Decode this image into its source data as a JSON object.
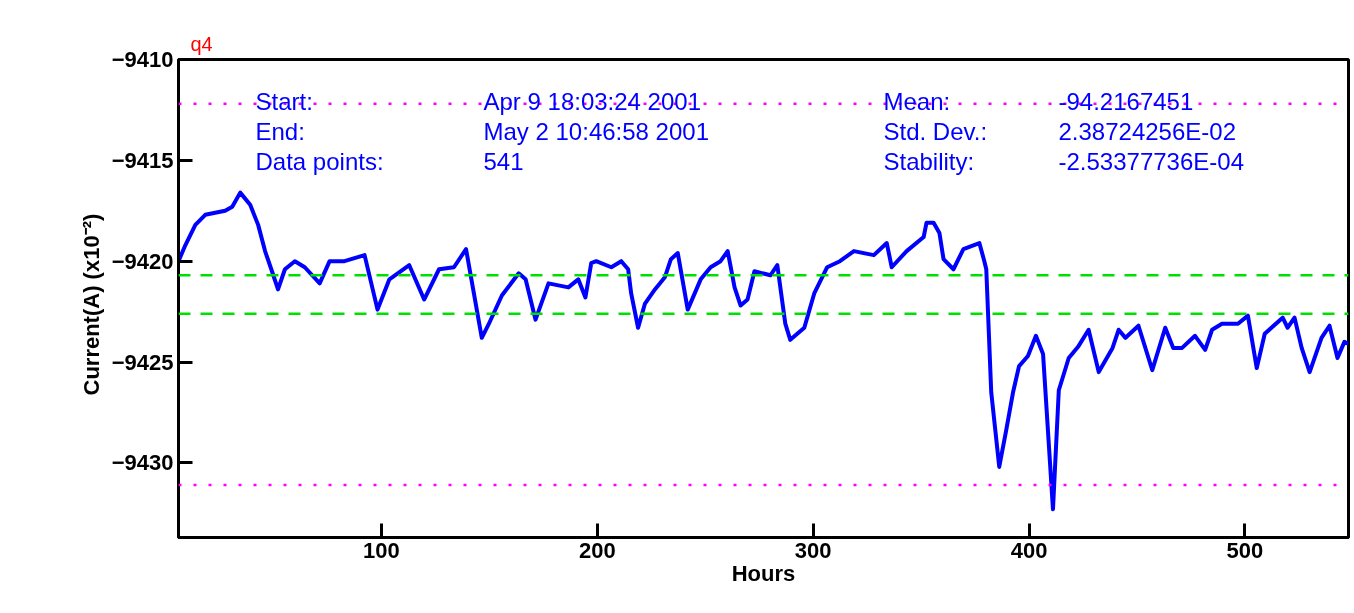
{
  "chart_data": {
    "type": "line",
    "title": "q4",
    "xlabel": "Hours",
    "ylabel": "Current(A)   (x10⁻²)",
    "x": [
      6.0,
      9.2,
      13.8,
      18.4,
      23.0,
      27.6,
      30.9,
      34.6,
      39.2,
      42.9,
      46.1,
      49.3,
      52.1,
      55.3,
      59.9,
      64.5,
      71.4,
      76.0,
      82.9,
      92.2,
      98.2,
      103.7,
      112.9,
      119.8,
      126.7,
      133.6,
      139.2,
      146.5,
      149.8,
      155.8,
      163.6,
      166.8,
      171.4,
      177.4,
      186.6,
      191.2,
      194.5,
      197.2,
      199.5,
      206.5,
      211.1,
      214.3,
      215.7,
      218.9,
      222.1,
      226.7,
      231.3,
      234.1,
      237.3,
      241.9,
      247.9,
      252.5,
      257.1,
      260.4,
      263.6,
      266.4,
      269.6,
      272.8,
      280.2,
      283.4,
      287.1,
      289.4,
      295.9,
      300.5,
      306.5,
      312.4,
      318.9,
      328.1,
      334.1,
      336.4,
      343.3,
      351.2,
      352.5,
      355.8,
      358.5,
      360.4,
      365.0,
      369.6,
      377.0,
      379.3,
      380.2,
      382.5,
      386.2,
      389.4,
      392.6,
      395.4,
      399.5,
      403.2,
      406.5,
      411.1,
      413.8,
      418.4,
      423.0,
      427.6,
      432.3,
      438.7,
      441.5,
      444.7,
      450.7,
      457.1,
      463.1,
      466.8,
      470.9,
      476.9,
      481.6,
      484.8,
      489.4,
      496.8,
      501.4,
      505.5,
      509.2,
      517.5,
      519.8,
      523.0,
      526.3,
      530.0,
      535.5,
      539.2,
      542.9,
      546.1,
      548.0
    ],
    "series": [
      {
        "color": "#0000ff",
        "values": [
          -9420.0,
          -9419.2,
          -9418.2,
          -9417.7,
          -9417.6,
          -9417.5,
          -9417.3,
          -9416.6,
          -9417.2,
          -9418.2,
          -9419.5,
          -9420.5,
          -9421.4,
          -9420.4,
          -9420.0,
          -9420.3,
          -9421.1,
          -9420.0,
          -9420.0,
          -9419.7,
          -9422.4,
          -9420.9,
          -9420.2,
          -9421.9,
          -9420.4,
          -9420.3,
          -9419.4,
          -9423.8,
          -9423.1,
          -9421.7,
          -9420.6,
          -9420.9,
          -9422.9,
          -9421.1,
          -9421.3,
          -9420.9,
          -9421.8,
          -9420.1,
          -9420.0,
          -9420.3,
          -9420.0,
          -9420.4,
          -9421.6,
          -9423.3,
          -9422.1,
          -9421.4,
          -9420.8,
          -9419.9,
          -9419.6,
          -9422.4,
          -9420.9,
          -9420.3,
          -9420.0,
          -9419.5,
          -9421.3,
          -9422.2,
          -9421.9,
          -9420.5,
          -9420.7,
          -9420.2,
          -9423.1,
          -9423.9,
          -9423.3,
          -9421.6,
          -9420.3,
          -9420.0,
          -9419.5,
          -9419.7,
          -9419.1,
          -9420.3,
          -9419.5,
          -9418.8,
          -9418.1,
          -9418.1,
          -9418.6,
          -9419.9,
          -9420.4,
          -9419.4,
          -9419.1,
          -9420.0,
          -9420.4,
          -9426.5,
          -9430.2,
          -9428.4,
          -9426.5,
          -9425.2,
          -9424.7,
          -9423.7,
          -9424.6,
          -9432.3,
          -9426.4,
          -9424.8,
          -9424.2,
          -9423.4,
          -9425.5,
          -9424.3,
          -9423.4,
          -9423.8,
          -9423.2,
          -9425.4,
          -9423.3,
          -9424.3,
          -9424.3,
          -9423.7,
          -9424.4,
          -9423.4,
          -9423.1,
          -9423.1,
          -9422.7,
          -9425.3,
          -9423.6,
          -9422.8,
          -9423.3,
          -9422.8,
          -9424.3,
          -9425.5,
          -9423.8,
          -9423.2,
          -9424.8,
          -9424.0,
          -9424.1
        ]
      }
    ],
    "xlim": [
      6,
      548
    ],
    "xticks": [
      100,
      200,
      300,
      400,
      500
    ],
    "ylim": [
      -9433.7,
      -9410
    ],
    "yticks": [
      -9410,
      -9415,
      -9420,
      -9425,
      -9430
    ],
    "ref_lines": [
      {
        "axis": "y",
        "value": -9412.2,
        "color": "#ff00ff",
        "line_style": "dotted"
      },
      {
        "axis": "y",
        "value": -9431.1,
        "color": "#ff00ff",
        "line_style": "dotted"
      },
      {
        "axis": "y",
        "value": -9420.7,
        "color": "#00e000",
        "line_style": "dashed"
      },
      {
        "axis": "y",
        "value": -9422.6,
        "color": "#00e000",
        "line_style": "dashed"
      }
    ],
    "annotations": [
      "Start:",
      "Apr  9  18:03:24  2001",
      "Mean:",
      "-94.2167451",
      "End:",
      "May  2  10:46:58  2001",
      "Std. Dev.:",
      "2.38724256E-02",
      "Data points:",
      "541",
      "Stability:",
      "-2.53377736E-04"
    ],
    "grid": false,
    "marker": "none",
    "line_style": "solid"
  }
}
